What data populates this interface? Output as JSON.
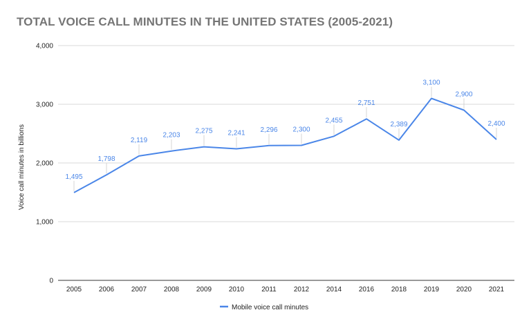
{
  "title": "TOTAL VOICE CALL MINUTES IN THE UNITED STATES (2005-2021)",
  "colors": {
    "series": "#4a86e8",
    "grid": "#d9d9d9",
    "title": "#757575",
    "text": "#222222"
  },
  "chart_data": {
    "type": "line",
    "title": "TOTAL VOICE CALL MINUTES IN THE UNITED STATES (2005-2021)",
    "xlabel": "",
    "ylabel": "Voice call minutes in billions",
    "categories": [
      "2005",
      "2006",
      "2007",
      "2008",
      "2009",
      "2010",
      "2011",
      "2012",
      "2014",
      "2016",
      "2018",
      "2019",
      "2020",
      "2021"
    ],
    "series": [
      {
        "name": "Mobile voice call minutes",
        "values": [
          1495,
          1798,
          2119,
          2203,
          2275,
          2241,
          2296,
          2300,
          2455,
          2751,
          2389,
          3100,
          2900,
          2400
        ],
        "labels": [
          "1,495",
          "1,798",
          "2,119",
          "2,203",
          "2,275",
          "2,241",
          "2,296",
          "2,300",
          "2,455",
          "2,751",
          "2,389",
          "3,100",
          "2,900",
          "2,400"
        ]
      }
    ],
    "ylim": [
      0,
      4000
    ],
    "yticks": [
      0,
      1000,
      2000,
      3000,
      4000
    ],
    "ytick_labels": [
      "0",
      "1,000",
      "2,000",
      "3,000",
      "4,000"
    ],
    "grid": true,
    "legend": "bottom"
  }
}
